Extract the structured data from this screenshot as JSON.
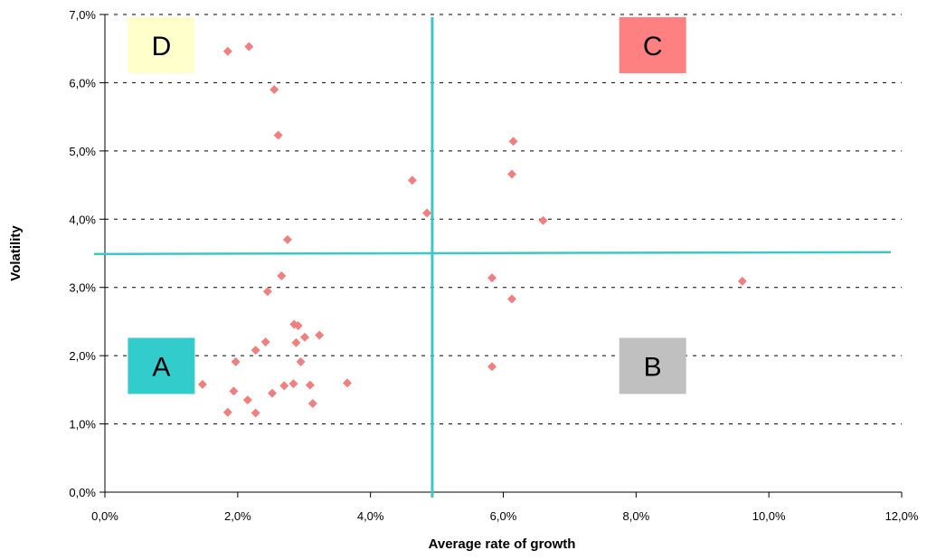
{
  "chart_data": {
    "type": "scatter",
    "title": "",
    "xlabel": "Average rate of growth",
    "ylabel": "Volatility",
    "xlim": [
      0,
      12
    ],
    "ylim": [
      0,
      7
    ],
    "x_ticks": [
      0,
      2,
      4,
      6,
      8,
      10,
      12
    ],
    "y_ticks": [
      0,
      1,
      2,
      3,
      4,
      5,
      6,
      7
    ],
    "x_tick_labels": [
      "0,0%",
      "2,0%",
      "4,0%",
      "6,0%",
      "8,0%",
      "10,0%",
      "12,0%"
    ],
    "y_tick_labels": [
      "0,0%",
      "1,0%",
      "2,0%",
      "3,0%",
      "4,0%",
      "5,0%",
      "6,0%",
      "7,0%"
    ],
    "grid": "horizontal dashed",
    "marker": "diamond",
    "marker_color": "#f08080",
    "points": [
      {
        "x": 1.85,
        "y": 6.46
      },
      {
        "x": 2.17,
        "y": 6.53
      },
      {
        "x": 2.55,
        "y": 5.9
      },
      {
        "x": 2.61,
        "y": 5.23
      },
      {
        "x": 4.63,
        "y": 4.57
      },
      {
        "x": 4.85,
        "y": 4.09
      },
      {
        "x": 6.15,
        "y": 5.14
      },
      {
        "x": 6.13,
        "y": 4.66
      },
      {
        "x": 6.6,
        "y": 3.98
      },
      {
        "x": 2.75,
        "y": 3.7
      },
      {
        "x": 2.66,
        "y": 3.17
      },
      {
        "x": 2.45,
        "y": 2.94
      },
      {
        "x": 5.83,
        "y": 3.14
      },
      {
        "x": 6.13,
        "y": 2.83
      },
      {
        "x": 9.6,
        "y": 3.09
      },
      {
        "x": 2.85,
        "y": 2.46
      },
      {
        "x": 2.91,
        "y": 2.44
      },
      {
        "x": 3.23,
        "y": 2.3
      },
      {
        "x": 3.01,
        "y": 2.27
      },
      {
        "x": 2.88,
        "y": 2.19
      },
      {
        "x": 2.42,
        "y": 2.2
      },
      {
        "x": 2.27,
        "y": 2.08
      },
      {
        "x": 1.97,
        "y": 1.91
      },
      {
        "x": 2.95,
        "y": 1.91
      },
      {
        "x": 5.83,
        "y": 1.84
      },
      {
        "x": 1.47,
        "y": 1.58
      },
      {
        "x": 3.65,
        "y": 1.6
      },
      {
        "x": 2.84,
        "y": 1.59
      },
      {
        "x": 3.09,
        "y": 1.57
      },
      {
        "x": 2.7,
        "y": 1.56
      },
      {
        "x": 1.94,
        "y": 1.48
      },
      {
        "x": 2.52,
        "y": 1.45
      },
      {
        "x": 2.15,
        "y": 1.35
      },
      {
        "x": 3.13,
        "y": 1.3
      },
      {
        "x": 1.85,
        "y": 1.17
      },
      {
        "x": 2.27,
        "y": 1.16
      }
    ],
    "quadrant_lines": {
      "x": 4.93,
      "y": 3.49
    },
    "quadrant_line_color": "#3cc8c8",
    "quadrants": [
      {
        "label": "D",
        "color": "#ffffcc",
        "x": 0.85,
        "y": 6.55
      },
      {
        "label": "C",
        "color": "#ff8080",
        "x": 8.25,
        "y": 6.55
      },
      {
        "label": "A",
        "color": "#33cccc",
        "x": 0.85,
        "y": 1.85
      },
      {
        "label": "B",
        "color": "#c0c0c0",
        "x": 8.25,
        "y": 1.85
      }
    ]
  }
}
